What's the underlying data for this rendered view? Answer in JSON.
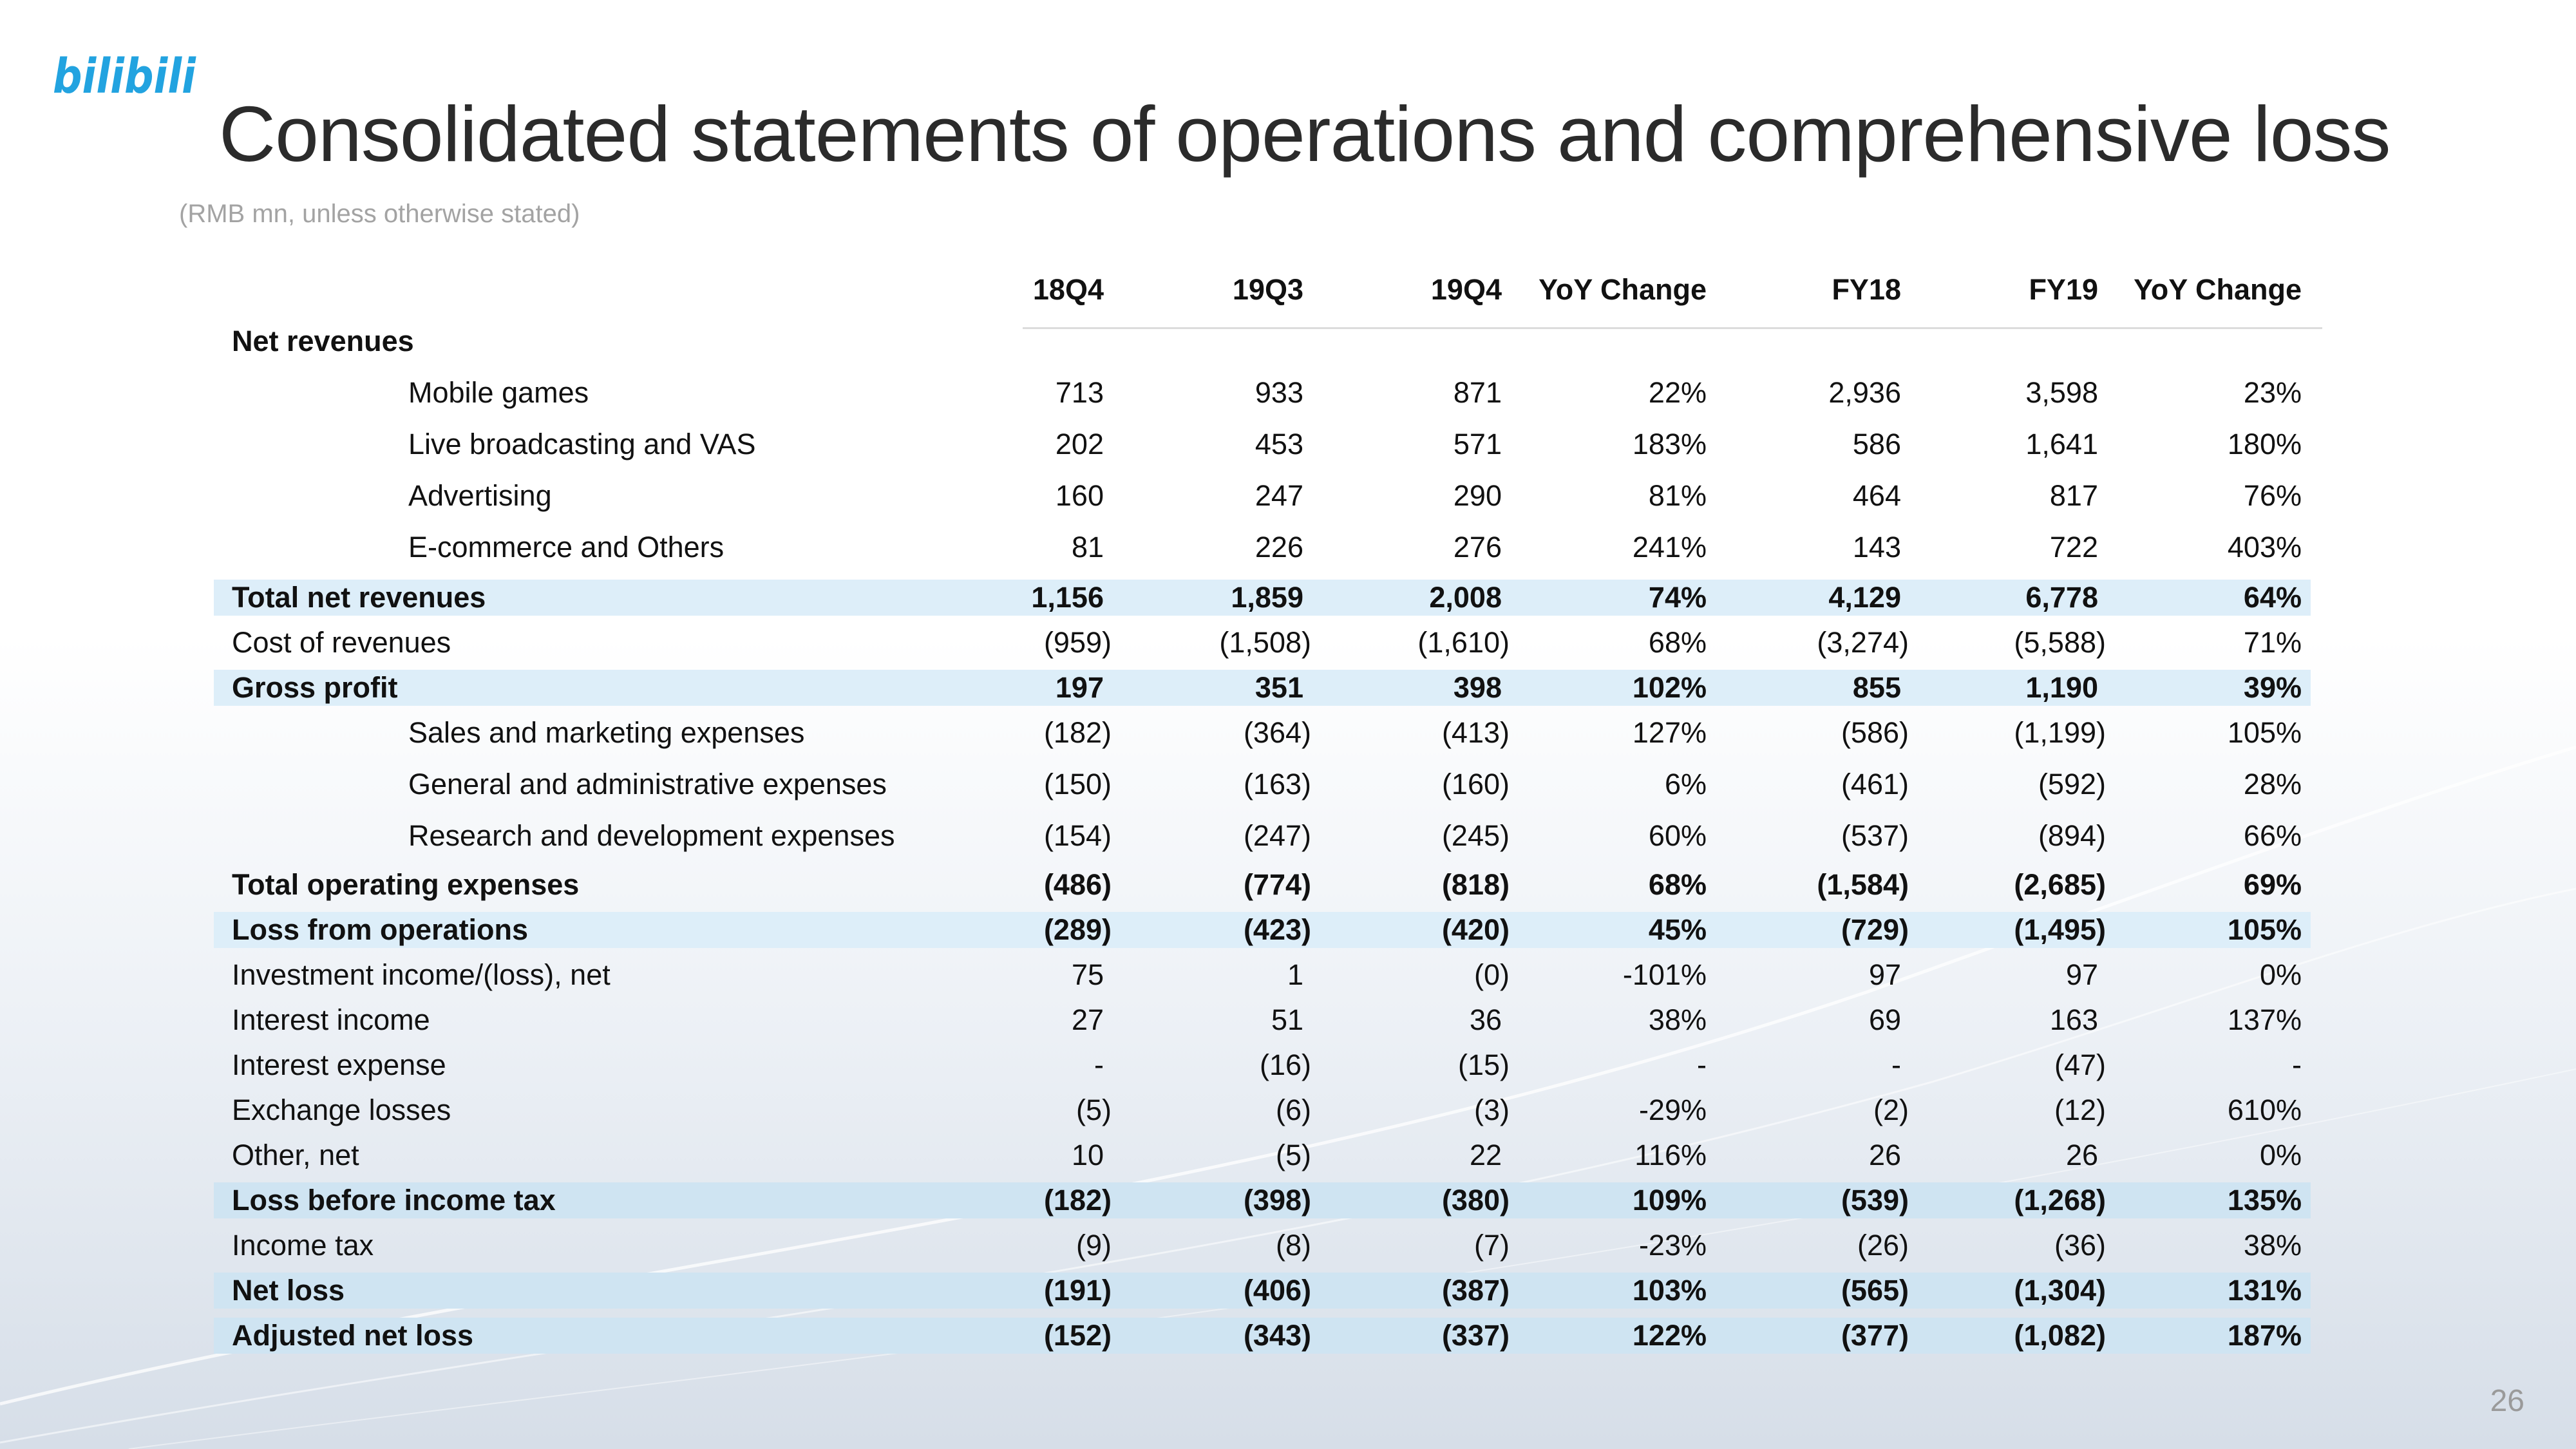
{
  "logo_text": "bilibili",
  "title": "Consolidated statements of operations and comprehensive loss",
  "subtitle": "(RMB mn, unless otherwise stated)",
  "page_number": "26",
  "colors": {
    "logo_blue": "#22a3e0",
    "highlight": "#ddeef9",
    "highlight_dark": "#cfe4f2",
    "title": "#2b2b2b"
  },
  "columns": [
    "18Q4",
    "19Q3",
    "19Q4",
    "YoY Change",
    "FY18",
    "FY19",
    "YoY Change"
  ],
  "rows": [
    {
      "label": "Net revenues",
      "values": [],
      "style": "section"
    },
    {
      "label": "Mobile games",
      "values": [
        "713",
        "933",
        "871",
        "22%",
        "2,936",
        "3,598",
        "23%"
      ],
      "style": "indent"
    },
    {
      "label": "Live broadcasting and VAS",
      "values": [
        "202",
        "453",
        "571",
        "183%",
        "586",
        "1,641",
        "180%"
      ],
      "style": "indent"
    },
    {
      "label": "Advertising",
      "values": [
        "160",
        "247",
        "290",
        "81%",
        "464",
        "817",
        "76%"
      ],
      "style": "indent"
    },
    {
      "label": "E-commerce and Others",
      "values": [
        "81",
        "226",
        "276",
        "241%",
        "143",
        "722",
        "403%"
      ],
      "style": "indent"
    },
    {
      "label": "Total net revenues",
      "values": [
        "1,156",
        "1,859",
        "2,008",
        "74%",
        "4,129",
        "6,778",
        "64%"
      ],
      "style": "highlight"
    },
    {
      "label": "Cost of revenues",
      "values": [
        "(959)",
        "(1,508)",
        "(1,610)",
        "68%",
        "(3,274)",
        "(5,588)",
        "71%"
      ],
      "style": "normal"
    },
    {
      "label": "Gross profit",
      "values": [
        "197",
        "351",
        "398",
        "102%",
        "855",
        "1,190",
        "39%"
      ],
      "style": "highlight"
    },
    {
      "label": "Sales and marketing expenses",
      "values": [
        "(182)",
        "(364)",
        "(413)",
        "127%",
        "(586)",
        "(1,199)",
        "105%"
      ],
      "style": "indent"
    },
    {
      "label": "General and administrative expenses",
      "values": [
        "(150)",
        "(163)",
        "(160)",
        "6%",
        "(461)",
        "(592)",
        "28%"
      ],
      "style": "indent"
    },
    {
      "label": "Research and development expenses",
      "values": [
        "(154)",
        "(247)",
        "(245)",
        "60%",
        "(537)",
        "(894)",
        "66%"
      ],
      "style": "indent"
    },
    {
      "label": "Total operating expenses",
      "values": [
        "(486)",
        "(774)",
        "(818)",
        "68%",
        "(1,584)",
        "(2,685)",
        "69%"
      ],
      "style": "bold"
    },
    {
      "label": "Loss from operations",
      "values": [
        "(289)",
        "(423)",
        "(420)",
        "45%",
        "(729)",
        "(1,495)",
        "105%"
      ],
      "style": "highlight"
    },
    {
      "label": "Investment income/(loss), net",
      "values": [
        "75",
        "1",
        "(0)",
        "-101%",
        "97",
        "97",
        "0%"
      ],
      "style": "normal"
    },
    {
      "label": "Interest income",
      "values": [
        "27",
        "51",
        "36",
        "38%",
        "69",
        "163",
        "137%"
      ],
      "style": "normal"
    },
    {
      "label": "Interest expense",
      "values": [
        "-",
        "(16)",
        "(15)",
        "-",
        "-",
        "(47)",
        "-"
      ],
      "style": "normal"
    },
    {
      "label": "Exchange losses",
      "values": [
        "(5)",
        "(6)",
        "(3)",
        "-29%",
        "(2)",
        "(12)",
        "610%"
      ],
      "style": "normal"
    },
    {
      "label": "Other, net",
      "values": [
        "10",
        "(5)",
        "22",
        "116%",
        "26",
        "26",
        "0%"
      ],
      "style": "normal"
    },
    {
      "label": "Loss before income tax",
      "values": [
        "(182)",
        "(398)",
        "(380)",
        "109%",
        "(539)",
        "(1,268)",
        "135%"
      ],
      "style": "highlight2"
    },
    {
      "label": "Income tax",
      "values": [
        "(9)",
        "(8)",
        "(7)",
        "-23%",
        "(26)",
        "(36)",
        "38%"
      ],
      "style": "normal"
    },
    {
      "label": "Net loss",
      "values": [
        "(191)",
        "(406)",
        "(387)",
        "103%",
        "(565)",
        "(1,304)",
        "131%"
      ],
      "style": "highlight2"
    },
    {
      "label": "Adjusted net loss",
      "values": [
        "(152)",
        "(343)",
        "(337)",
        "122%",
        "(377)",
        "(1,082)",
        "187%"
      ],
      "style": "highlight2"
    }
  ]
}
